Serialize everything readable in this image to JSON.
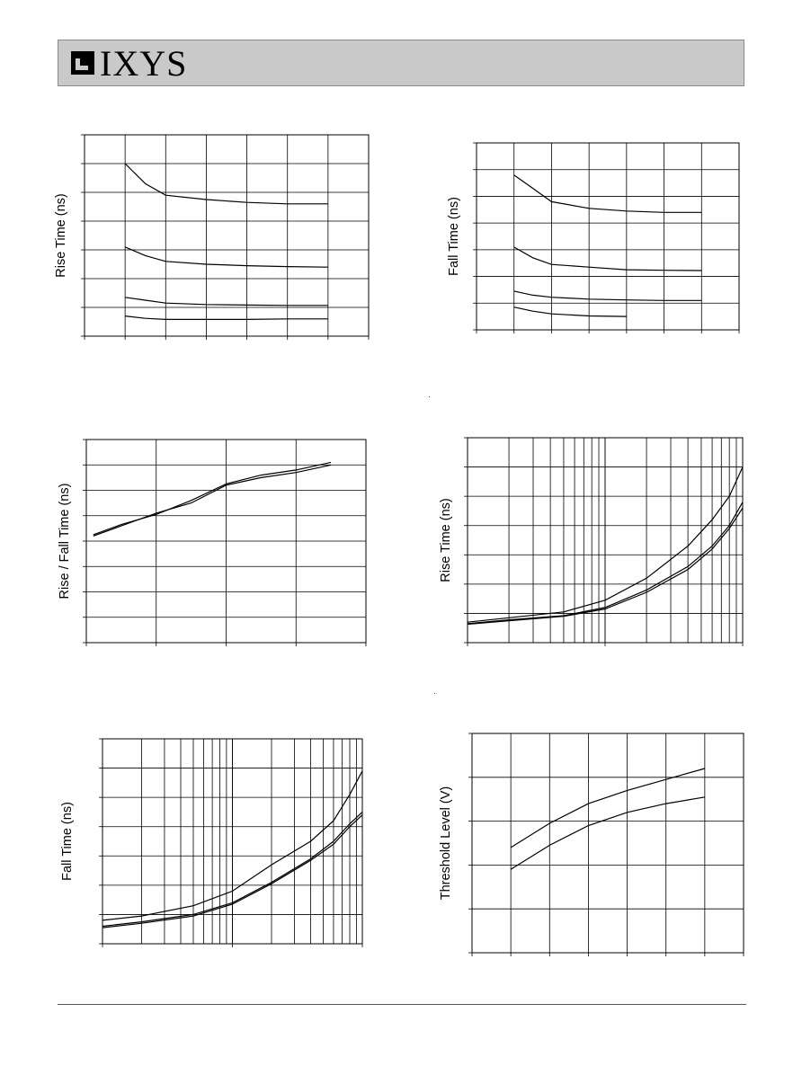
{
  "header": {
    "logo_text": "IXYS"
  },
  "chart_data": [
    {
      "id": "c1",
      "type": "line",
      "ylabel": "Rise Time (ns)",
      "x_scale": "linear",
      "xlim": [
        0,
        7
      ],
      "ylim": [
        0,
        7
      ],
      "x_divisions": 7,
      "y_divisions": 7,
      "series": [
        {
          "x": [
            1,
            1.5,
            2,
            3,
            4,
            5,
            6
          ],
          "y": [
            6.0,
            5.3,
            4.9,
            4.75,
            4.65,
            4.6,
            4.6
          ]
        },
        {
          "x": [
            1,
            1.5,
            2,
            3,
            4,
            5,
            6
          ],
          "y": [
            3.1,
            2.8,
            2.6,
            2.5,
            2.45,
            2.42,
            2.4
          ]
        },
        {
          "x": [
            1,
            1.5,
            2,
            3,
            4,
            5,
            6
          ],
          "y": [
            1.35,
            1.25,
            1.15,
            1.1,
            1.08,
            1.07,
            1.07
          ]
        },
        {
          "x": [
            1,
            1.5,
            2,
            3,
            4,
            5,
            6
          ],
          "y": [
            0.7,
            0.62,
            0.58,
            0.58,
            0.58,
            0.6,
            0.6
          ]
        }
      ]
    },
    {
      "id": "c2",
      "type": "line",
      "ylabel": "Fall Time (ns)",
      "x_scale": "linear",
      "xlim": [
        0,
        7
      ],
      "ylim": [
        0,
        7
      ],
      "x_divisions": 7,
      "y_divisions": 7,
      "series": [
        {
          "x": [
            1,
            1.5,
            2,
            3,
            4,
            5,
            6
          ],
          "y": [
            5.8,
            5.3,
            4.8,
            4.55,
            4.45,
            4.4,
            4.4
          ]
        },
        {
          "x": [
            1,
            1.5,
            2,
            3,
            4,
            5,
            6
          ],
          "y": [
            3.1,
            2.7,
            2.45,
            2.35,
            2.25,
            2.23,
            2.22
          ]
        },
        {
          "x": [
            1,
            1.5,
            2,
            3,
            4,
            5,
            6
          ],
          "y": [
            1.45,
            1.3,
            1.22,
            1.15,
            1.12,
            1.1,
            1.1
          ]
        },
        {
          "x": [
            1,
            1.5,
            2,
            3,
            4
          ],
          "y": [
            0.85,
            0.7,
            0.6,
            0.52,
            0.5
          ]
        }
      ]
    },
    {
      "id": "c3",
      "type": "line",
      "ylabel": "Rise / Fall Time (ns)",
      "x_scale": "linear",
      "xlim": [
        0,
        4
      ],
      "ylim": [
        0,
        8
      ],
      "x_divisions": 4,
      "y_divisions": 8,
      "series": [
        {
          "x": [
            0.1,
            0.5,
            1,
            1.5,
            2,
            2.5,
            3,
            3.5
          ],
          "y": [
            4.2,
            4.6,
            5.1,
            5.5,
            6.2,
            6.5,
            6.7,
            7.0
          ]
        },
        {
          "x": [
            0.1,
            0.5,
            1,
            1.5,
            2,
            2.5,
            3,
            3.5
          ],
          "y": [
            4.25,
            4.65,
            5.05,
            5.6,
            6.25,
            6.6,
            6.8,
            7.1
          ]
        }
      ]
    },
    {
      "id": "c4",
      "type": "line",
      "ylabel": "Rise Time (ns)",
      "x_scale": "log",
      "xlim": [
        1,
        100
      ],
      "ylim": [
        0,
        7
      ],
      "y_divisions": 7,
      "series": [
        {
          "x": [
            1,
            2,
            5,
            10,
            20,
            40,
            60,
            80,
            100
          ],
          "y": [
            0.7,
            0.85,
            1.05,
            1.45,
            2.2,
            3.3,
            4.2,
            5.0,
            6.0
          ]
        },
        {
          "x": [
            1,
            2,
            5,
            10,
            20,
            40,
            60,
            80,
            100
          ],
          "y": [
            0.65,
            0.78,
            0.92,
            1.2,
            1.8,
            2.6,
            3.3,
            4.0,
            4.8
          ]
        },
        {
          "x": [
            1,
            2,
            5,
            10,
            20,
            40,
            60,
            80,
            100
          ],
          "y": [
            0.63,
            0.75,
            0.9,
            1.15,
            1.72,
            2.5,
            3.2,
            3.9,
            4.6
          ]
        }
      ]
    },
    {
      "id": "c5",
      "type": "line",
      "ylabel": "Fall Time (ns)",
      "x_scale": "log",
      "xlim": [
        1,
        100
      ],
      "ylim": [
        0,
        7
      ],
      "y_divisions": 7,
      "series": [
        {
          "x": [
            1,
            2,
            5,
            10,
            20,
            40,
            60,
            80,
            100
          ],
          "y": [
            0.8,
            0.95,
            1.3,
            1.8,
            2.7,
            3.5,
            4.2,
            5.1,
            5.9
          ]
        },
        {
          "x": [
            1,
            2,
            5,
            10,
            20,
            40,
            60,
            80,
            100
          ],
          "y": [
            0.6,
            0.75,
            1.0,
            1.4,
            2.1,
            2.9,
            3.5,
            4.1,
            4.5
          ]
        },
        {
          "x": [
            1,
            2,
            5,
            10,
            20,
            40,
            60,
            80,
            100
          ],
          "y": [
            0.55,
            0.7,
            0.95,
            1.35,
            2.05,
            2.85,
            3.4,
            4.0,
            4.4
          ]
        }
      ]
    },
    {
      "id": "c6",
      "type": "line",
      "ylabel": "Threshold Level (V)",
      "x_scale": "linear",
      "xlim": [
        0,
        7
      ],
      "ylim": [
        0,
        5
      ],
      "x_divisions": 7,
      "y_divisions": 5,
      "series": [
        {
          "x": [
            1,
            2,
            3,
            4,
            5,
            6
          ],
          "y": [
            2.4,
            2.95,
            3.4,
            3.7,
            3.95,
            4.2
          ]
        },
        {
          "x": [
            1,
            2,
            3,
            4,
            5,
            6
          ],
          "y": [
            1.9,
            2.45,
            2.9,
            3.2,
            3.4,
            3.55
          ]
        }
      ]
    }
  ]
}
